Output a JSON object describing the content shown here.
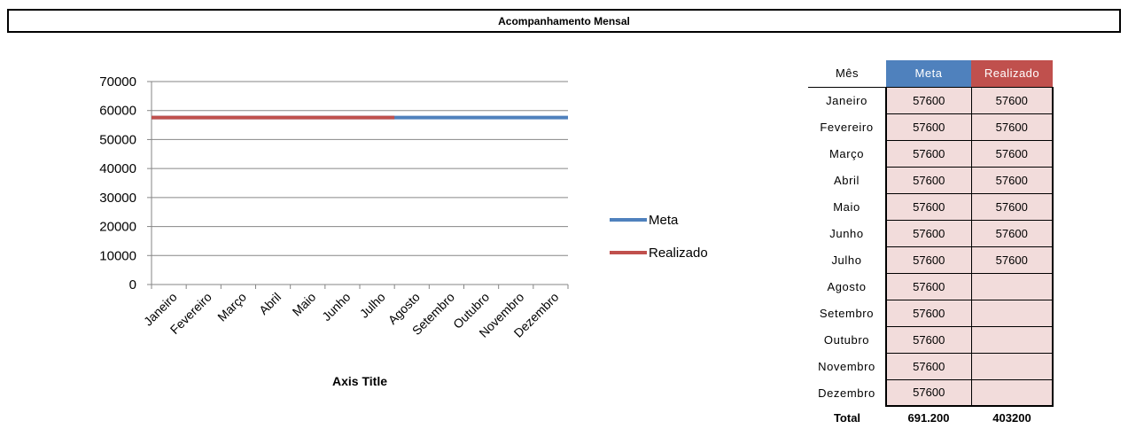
{
  "header": {
    "title": "Acompanhamento Mensal"
  },
  "chart_data": {
    "type": "line",
    "categories": [
      "Janeiro",
      "Fevereiro",
      "Março",
      "Abril",
      "Maio",
      "Junho",
      "Julho",
      "Agosto",
      "Setembro",
      "Outubro",
      "Novembro",
      "Dezembro"
    ],
    "series": [
      {
        "name": "Meta",
        "color": "#4f81bd",
        "values": [
          57600,
          57600,
          57600,
          57600,
          57600,
          57600,
          57600,
          57600,
          57600,
          57600,
          57600,
          57600
        ]
      },
      {
        "name": "Realizado",
        "color": "#c0504d",
        "values": [
          57600,
          57600,
          57600,
          57600,
          57600,
          57600,
          57600,
          null,
          null,
          null,
          null,
          null
        ]
      }
    ],
    "xlabel": "Axis Title",
    "ylabel": "",
    "ylim": [
      0,
      70000
    ],
    "yticks": [
      0,
      10000,
      20000,
      30000,
      40000,
      50000,
      60000,
      70000
    ],
    "grid": true,
    "legend": "right"
  },
  "table": {
    "headers": {
      "month": "Mês",
      "meta": "Meta",
      "real": "Realizado"
    },
    "rows": [
      {
        "month": "Janeiro",
        "meta": "57600",
        "real": "57600"
      },
      {
        "month": "Fevereiro",
        "meta": "57600",
        "real": "57600"
      },
      {
        "month": "Março",
        "meta": "57600",
        "real": "57600"
      },
      {
        "month": "Abril",
        "meta": "57600",
        "real": "57600"
      },
      {
        "month": "Maio",
        "meta": "57600",
        "real": "57600"
      },
      {
        "month": "Junho",
        "meta": "57600",
        "real": "57600"
      },
      {
        "month": "Julho",
        "meta": "57600",
        "real": "57600"
      },
      {
        "month": "Agosto",
        "meta": "57600",
        "real": ""
      },
      {
        "month": "Setembro",
        "meta": "57600",
        "real": ""
      },
      {
        "month": "Outubro",
        "meta": "57600",
        "real": ""
      },
      {
        "month": "Novembro",
        "meta": "57600",
        "real": ""
      },
      {
        "month": "Dezembro",
        "meta": "57600",
        "real": ""
      }
    ],
    "total": {
      "label": "Total",
      "meta": "691.200",
      "real": "403200"
    }
  }
}
